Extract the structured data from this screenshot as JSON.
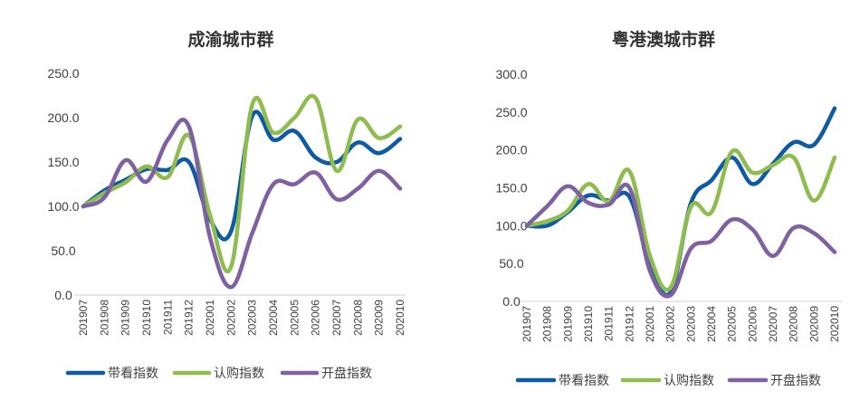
{
  "chart_data": [
    {
      "type": "line",
      "title": "成渝城市群",
      "xlabel": "",
      "ylabel": "",
      "ylim": [
        0,
        250
      ],
      "ytick_labels": [
        "0.0",
        "50.0",
        "100.0",
        "150.0",
        "200.0",
        "250.0"
      ],
      "grid": false,
      "legend_position": "bottom",
      "categories": [
        "201907",
        "201908",
        "201909",
        "201910",
        "201911",
        "201912",
        "202001",
        "202002",
        "202003",
        "202004",
        "202005",
        "202006",
        "202007",
        "202008",
        "202009",
        "202010"
      ],
      "series": [
        {
          "name": "带看指数",
          "color": "#0e5aa3",
          "values": [
            100,
            118,
            130,
            142,
            141,
            150,
            85,
            72,
            202,
            175,
            185,
            155,
            150,
            172,
            160,
            176
          ]
        },
        {
          "name": "认购指数",
          "color": "#8fbc4f",
          "values": [
            100,
            115,
            127,
            145,
            133,
            180,
            90,
            32,
            215,
            183,
            200,
            222,
            140,
            198,
            177,
            190
          ]
        },
        {
          "name": "开盘指数",
          "color": "#7f60a0",
          "values": [
            100,
            110,
            152,
            128,
            175,
            190,
            65,
            9,
            70,
            125,
            125,
            138,
            108,
            120,
            140,
            120
          ]
        }
      ]
    },
    {
      "type": "line",
      "title": "粤港澳城市群",
      "xlabel": "",
      "ylabel": "",
      "ylim": [
        0,
        300
      ],
      "ytick_labels": [
        "0.0",
        "50.0",
        "100.0",
        "150.0",
        "200.0",
        "250.0",
        "300.0"
      ],
      "grid": false,
      "legend_position": "bottom",
      "categories": [
        "201907",
        "201908",
        "201909",
        "201910",
        "201911",
        "201912",
        "202001",
        "202002",
        "202003",
        "202004",
        "202005",
        "202006",
        "202007",
        "202008",
        "202009",
        "202010"
      ],
      "series": [
        {
          "name": "带看指数",
          "color": "#0e5aa3",
          "values": [
            100,
            100,
            118,
            140,
            133,
            138,
            50,
            12,
            130,
            160,
            190,
            155,
            182,
            210,
            207,
            255
          ]
        },
        {
          "name": "认购指数",
          "color": "#8fbc4f",
          "values": [
            100,
            106,
            120,
            155,
            132,
            172,
            60,
            18,
            125,
            118,
            198,
            170,
            180,
            190,
            133,
            190
          ]
        },
        {
          "name": "开盘指数",
          "color": "#7f60a0",
          "values": [
            100,
            126,
            152,
            130,
            128,
            150,
            40,
            8,
            70,
            80,
            108,
            95,
            60,
            97,
            90,
            65
          ]
        }
      ]
    }
  ]
}
